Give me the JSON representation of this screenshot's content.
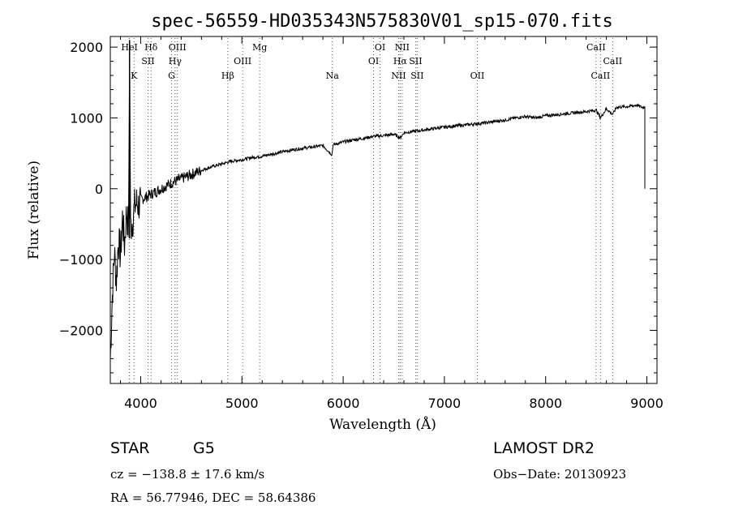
{
  "chart_data": {
    "type": "line",
    "title": "spec-56559-HD035343N575830V01_sp15-070.fits",
    "xlabel": "Wavelength (Å)",
    "ylabel": "Flux (relative)",
    "xlim": [
      3700,
      9100
    ],
    "ylim": [
      -2750,
      2150
    ],
    "x_ticks": [
      4000,
      5000,
      6000,
      7000,
      8000,
      9000
    ],
    "x_tick_labels": [
      "4000",
      "5000",
      "6000",
      "7000",
      "8000",
      "9000"
    ],
    "y_ticks": [
      -2000,
      -1000,
      0,
      1000,
      2000
    ],
    "y_tick_labels": [
      "−2000",
      "−1000",
      "0",
      "1000",
      "2000"
    ],
    "grid": false,
    "series": [
      {
        "x": [
          3700,
          3720,
          3740,
          3760,
          3780,
          3800,
          3820,
          3840,
          3860,
          3880,
          3890,
          3900,
          3920,
          3940,
          3960,
          3980,
          4000,
          4050,
          4100,
          4150,
          4200,
          4250,
          4300,
          4350,
          4400,
          4450,
          4500,
          4600,
          4700,
          4800,
          4900,
          5000,
          5100,
          5200,
          5300,
          5400,
          5500,
          5600,
          5700,
          5800,
          5890,
          5900,
          6000,
          6100,
          6200,
          6300,
          6400,
          6500,
          6563,
          6600,
          6700,
          6800,
          6900,
          7000,
          7200,
          7400,
          7600,
          7700,
          7800,
          7900,
          8000,
          8200,
          8400,
          8500,
          8542,
          8600,
          8662,
          8700,
          8800,
          8900,
          8950,
          8980,
          9000
        ],
        "y": [
          -2400,
          -1500,
          -900,
          -1300,
          -700,
          -950,
          -400,
          -800,
          -300,
          -600,
          2100,
          -550,
          -450,
          -250,
          -200,
          -230,
          -160,
          -120,
          -80,
          -40,
          0,
          40,
          80,
          110,
          140,
          170,
          200,
          260,
          310,
          350,
          390,
          410,
          440,
          460,
          490,
          520,
          550,
          570,
          590,
          610,
          480,
          620,
          660,
          690,
          710,
          740,
          750,
          770,
          720,
          790,
          810,
          830,
          850,
          870,
          900,
          930,
          970,
          1000,
          1020,
          1000,
          1030,
          1060,
          1090,
          1110,
          1000,
          1130,
          1050,
          1150,
          1160,
          1180,
          1150,
          1150,
          0
        ]
      }
    ],
    "spectral_lines": [
      {
        "label": "HeI",
        "x": 3889,
        "row": 0
      },
      {
        "label": "Hγ",
        "x": 4340,
        "row": 1
      },
      {
        "label": "K",
        "x": 3934,
        "row": 2
      },
      {
        "label": "Hδ",
        "x": 4102,
        "row": 0
      },
      {
        "label": "SII",
        "x": 4072,
        "row": 1
      },
      {
        "label": "OIII",
        "x": 4363,
        "row": 0
      },
      {
        "label": "G",
        "x": 4305,
        "row": 2
      },
      {
        "label": "Hβ",
        "x": 4861,
        "row": 2
      },
      {
        "label": "OIII",
        "x": 5007,
        "row": 1
      },
      {
        "label": "Mg",
        "x": 5175,
        "row": 0
      },
      {
        "label": "Na",
        "x": 5893,
        "row": 2
      },
      {
        "label": "OI",
        "x": 6364,
        "row": 0
      },
      {
        "label": "OI",
        "x": 6300,
        "row": 1
      },
      {
        "label": "NII",
        "x": 6583,
        "row": 0
      },
      {
        "label": "Hα",
        "x": 6563,
        "row": 1
      },
      {
        "label": "SII",
        "x": 6716,
        "row": 1
      },
      {
        "label": "NII",
        "x": 6548,
        "row": 2
      },
      {
        "label": "SII",
        "x": 6731,
        "row": 2
      },
      {
        "label": "OII",
        "x": 7325,
        "row": 2
      },
      {
        "label": "CaII",
        "x": 8498,
        "row": 0
      },
      {
        "label": "CaII",
        "x": 8662,
        "row": 1
      },
      {
        "label": "CaII",
        "x": 8542,
        "row": 2
      }
    ]
  },
  "footer": {
    "class_label": "STAR",
    "subclass_label": "G5",
    "survey_label": "LAMOST DR2",
    "cz_text": "cz = −138.8 ± 17.6 km/s",
    "obs_date_text": "Obs−Date: 20130923",
    "coords_text": "RA =  56.77946, DEC =  58.64386"
  }
}
